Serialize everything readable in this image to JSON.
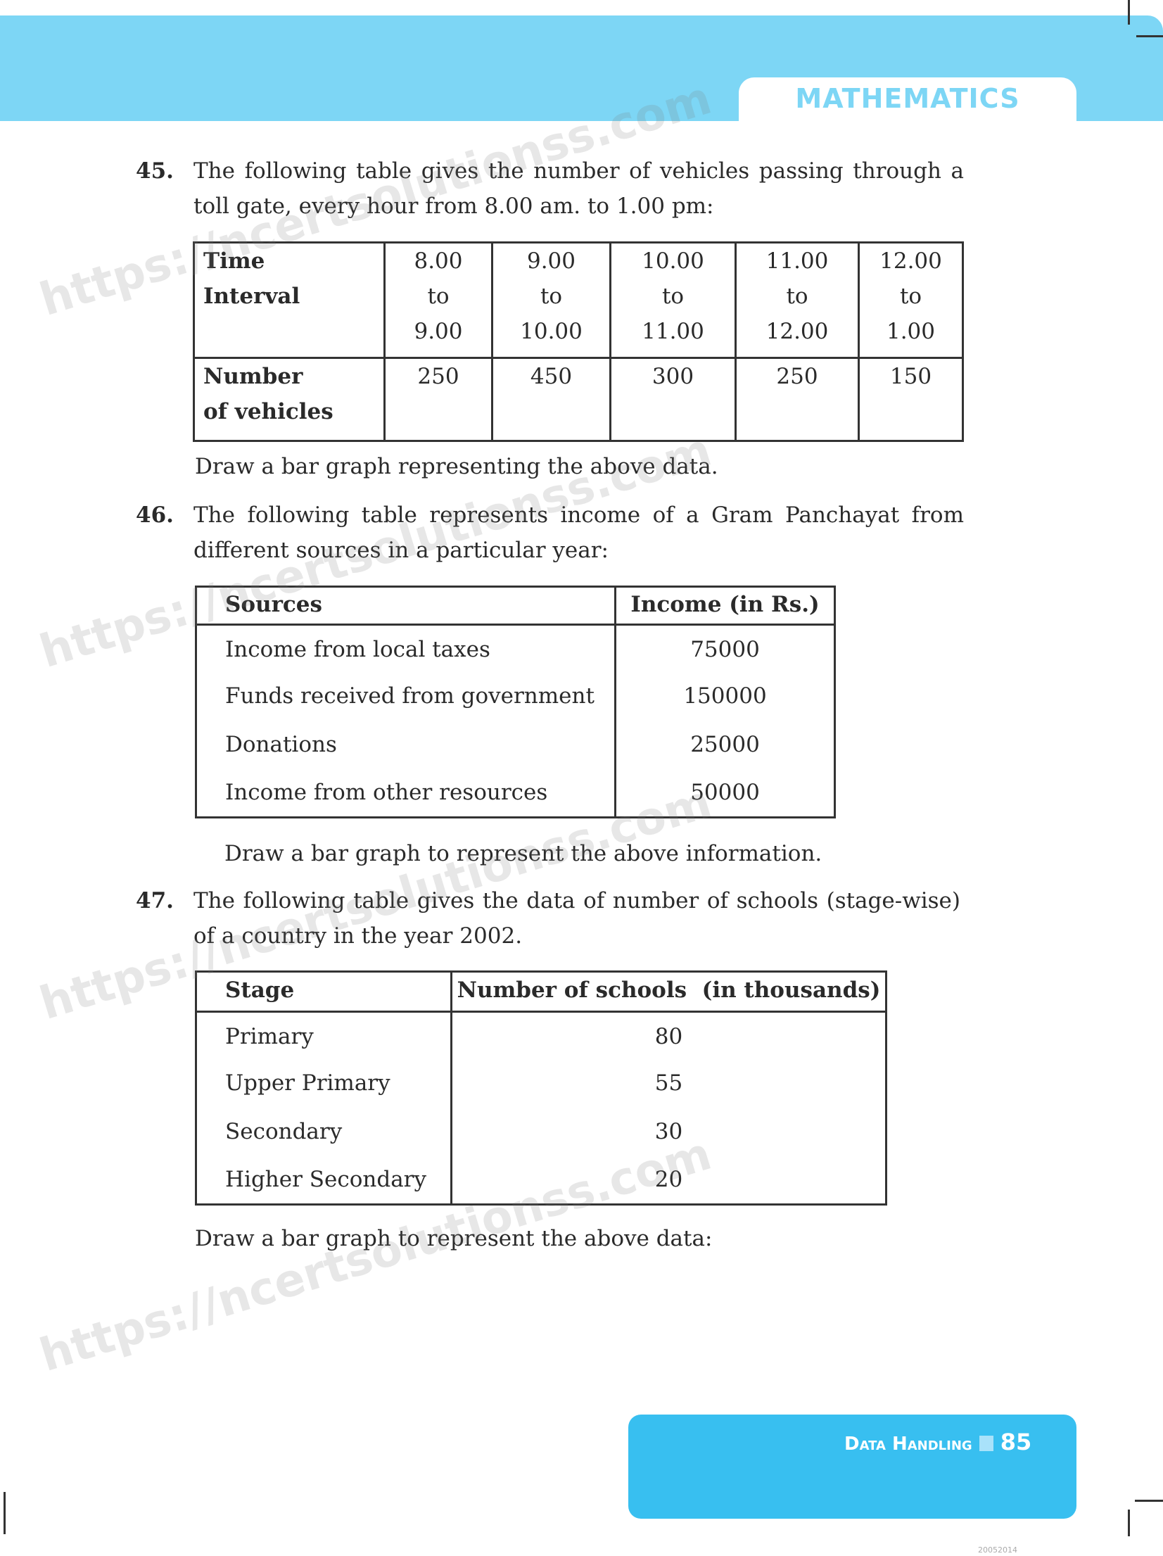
{
  "header": {
    "subject": "MATHEMATICS"
  },
  "questions": [
    {
      "number": "45.",
      "text_lines": [
        "The following table gives the number of vehicles passing through a",
        "toll gate, every hour from 8.00 am. to 1.00 pm:"
      ],
      "table": {
        "row_header_1": [
          "Time",
          "Interval"
        ],
        "intervals": [
          [
            "8.00",
            "to",
            "9.00"
          ],
          [
            "9.00",
            "to",
            "10.00"
          ],
          [
            "10.00",
            "to",
            "11.00"
          ],
          [
            "11.00",
            "to",
            "12.00"
          ],
          [
            "12.00",
            "to",
            "1.00"
          ]
        ],
        "row_header_2": [
          "Number",
          "of vehicles"
        ],
        "values": [
          "250",
          "450",
          "300",
          "250",
          "150"
        ]
      },
      "instruction": "Draw a bar graph representing the above data."
    },
    {
      "number": "46.",
      "text_lines": [
        "The following table represents income of a Gram Panchayat from",
        "different sources in a particular year:"
      ],
      "table": {
        "headers": [
          "Sources",
          "Income (in Rs.)"
        ],
        "rows": [
          [
            "Income from local taxes",
            "75000"
          ],
          [
            "Funds received from government",
            "150000"
          ],
          [
            "Donations",
            "25000"
          ],
          [
            "Income from other resources",
            "50000"
          ]
        ]
      },
      "instruction": "Draw a bar graph to represent the above information."
    },
    {
      "number": "47.",
      "text_lines": [
        "The following table gives the data of number of schools (stage-wise)",
        "of a country in the year 2002."
      ],
      "table": {
        "headers": [
          "Stage",
          "Number of schools  (in thousands)"
        ],
        "rows": [
          [
            "Primary",
            "80"
          ],
          [
            "Upper Primary",
            "55"
          ],
          [
            "Secondary",
            "30"
          ],
          [
            "Higher Secondary",
            "20"
          ]
        ]
      },
      "instruction": "Draw a bar graph to represent the above data:"
    }
  ],
  "watermark": "https://ncertsolutionss.com",
  "footer": {
    "chapter": "Data Handling",
    "page": "85",
    "code": "20052014"
  },
  "colors": {
    "header_band": "#7dd6f5",
    "footer_box": "#38bff0"
  }
}
